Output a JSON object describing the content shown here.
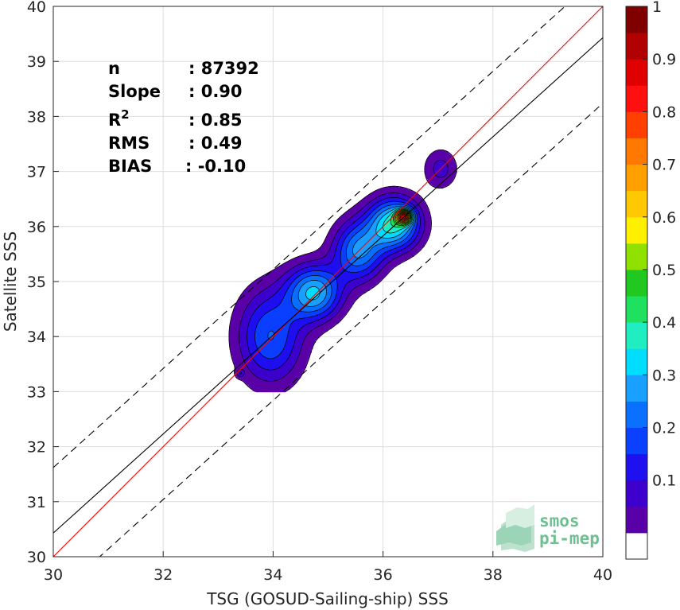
{
  "chart_data": {
    "type": "heatmap",
    "title": "",
    "xlabel": "TSG (GOSUD-Sailing-ship) SSS",
    "ylabel": "Satellite SSS",
    "xlim": [
      30,
      40
    ],
    "ylim": [
      30,
      40
    ],
    "x_ticks": [
      "30",
      "32",
      "34",
      "36",
      "38",
      "40"
    ],
    "y_ticks": [
      "30",
      "31",
      "32",
      "33",
      "34",
      "35",
      "36",
      "37",
      "38",
      "39",
      "40"
    ],
    "grid": true,
    "reference_lines": [
      {
        "kind": "one-to-one",
        "color": "#ff0000",
        "style": "solid",
        "slope": 1.0,
        "intercept": 0.0
      },
      {
        "kind": "regression",
        "color": "#000000",
        "style": "solid",
        "slope": 0.9,
        "intercept": 3.43
      },
      {
        "kind": "upper-bound",
        "color": "#000000",
        "style": "dashed",
        "slope": 0.9,
        "intercept": 4.62
      },
      {
        "kind": "lower-bound",
        "color": "#000000",
        "style": "dashed",
        "slope": 0.9,
        "intercept": 2.24
      }
    ],
    "density_clusters": [
      {
        "x": 33.95,
        "y": 34.0,
        "sx": 0.42,
        "sy": 0.6,
        "w": 0.25
      },
      {
        "x": 34.75,
        "y": 34.8,
        "sx": 0.35,
        "sy": 0.35,
        "w": 0.35
      },
      {
        "x": 35.55,
        "y": 35.55,
        "sx": 0.32,
        "sy": 0.38,
        "w": 0.3
      },
      {
        "x": 36.2,
        "y": 36.05,
        "sx": 0.33,
        "sy": 0.33,
        "w": 0.42
      },
      {
        "x": 36.38,
        "y": 36.18,
        "sx": 0.1,
        "sy": 0.09,
        "w": 0.6
      },
      {
        "x": 37.05,
        "y": 37.05,
        "sx": 0.22,
        "sy": 0.26,
        "w": 0.12
      },
      {
        "x": 33.4,
        "y": 33.33,
        "sx": 0.05,
        "sy": 0.05,
        "w": 0.1
      }
    ],
    "colorbar": {
      "range": [
        0,
        1
      ],
      "ticks": [
        "0.1",
        "0.2",
        "0.3",
        "0.4",
        "0.5",
        "0.6",
        "0.7",
        "0.8",
        "0.9",
        "1"
      ],
      "levels": [
        "#ffffff",
        "#5a00a8",
        "#3d00cd",
        "#1f10f0",
        "#0c40ff",
        "#0a70ff",
        "#1aa0ff",
        "#00ddff",
        "#20eec0",
        "#20e060",
        "#20c820",
        "#90e000",
        "#fff000",
        "#ffc800",
        "#ffa000",
        "#ff7800",
        "#ff4000",
        "#ff1010",
        "#e00000",
        "#b00000",
        "#800000"
      ]
    }
  },
  "stats": {
    "n_label": "n",
    "n_value": ": 87392",
    "slope_label": "Slope",
    "slope_value": ": 0.90",
    "r2_label": "R",
    "r2_sup": "2",
    "r2_value": ": 0.85",
    "rms_label": "RMS",
    "rms_value": ": 0.49",
    "bias_label": "BIAS",
    "bias_value": ": -0.10"
  },
  "logo": {
    "line1": "smos",
    "line2": "pi-mep",
    "color": "#6fbf93"
  }
}
